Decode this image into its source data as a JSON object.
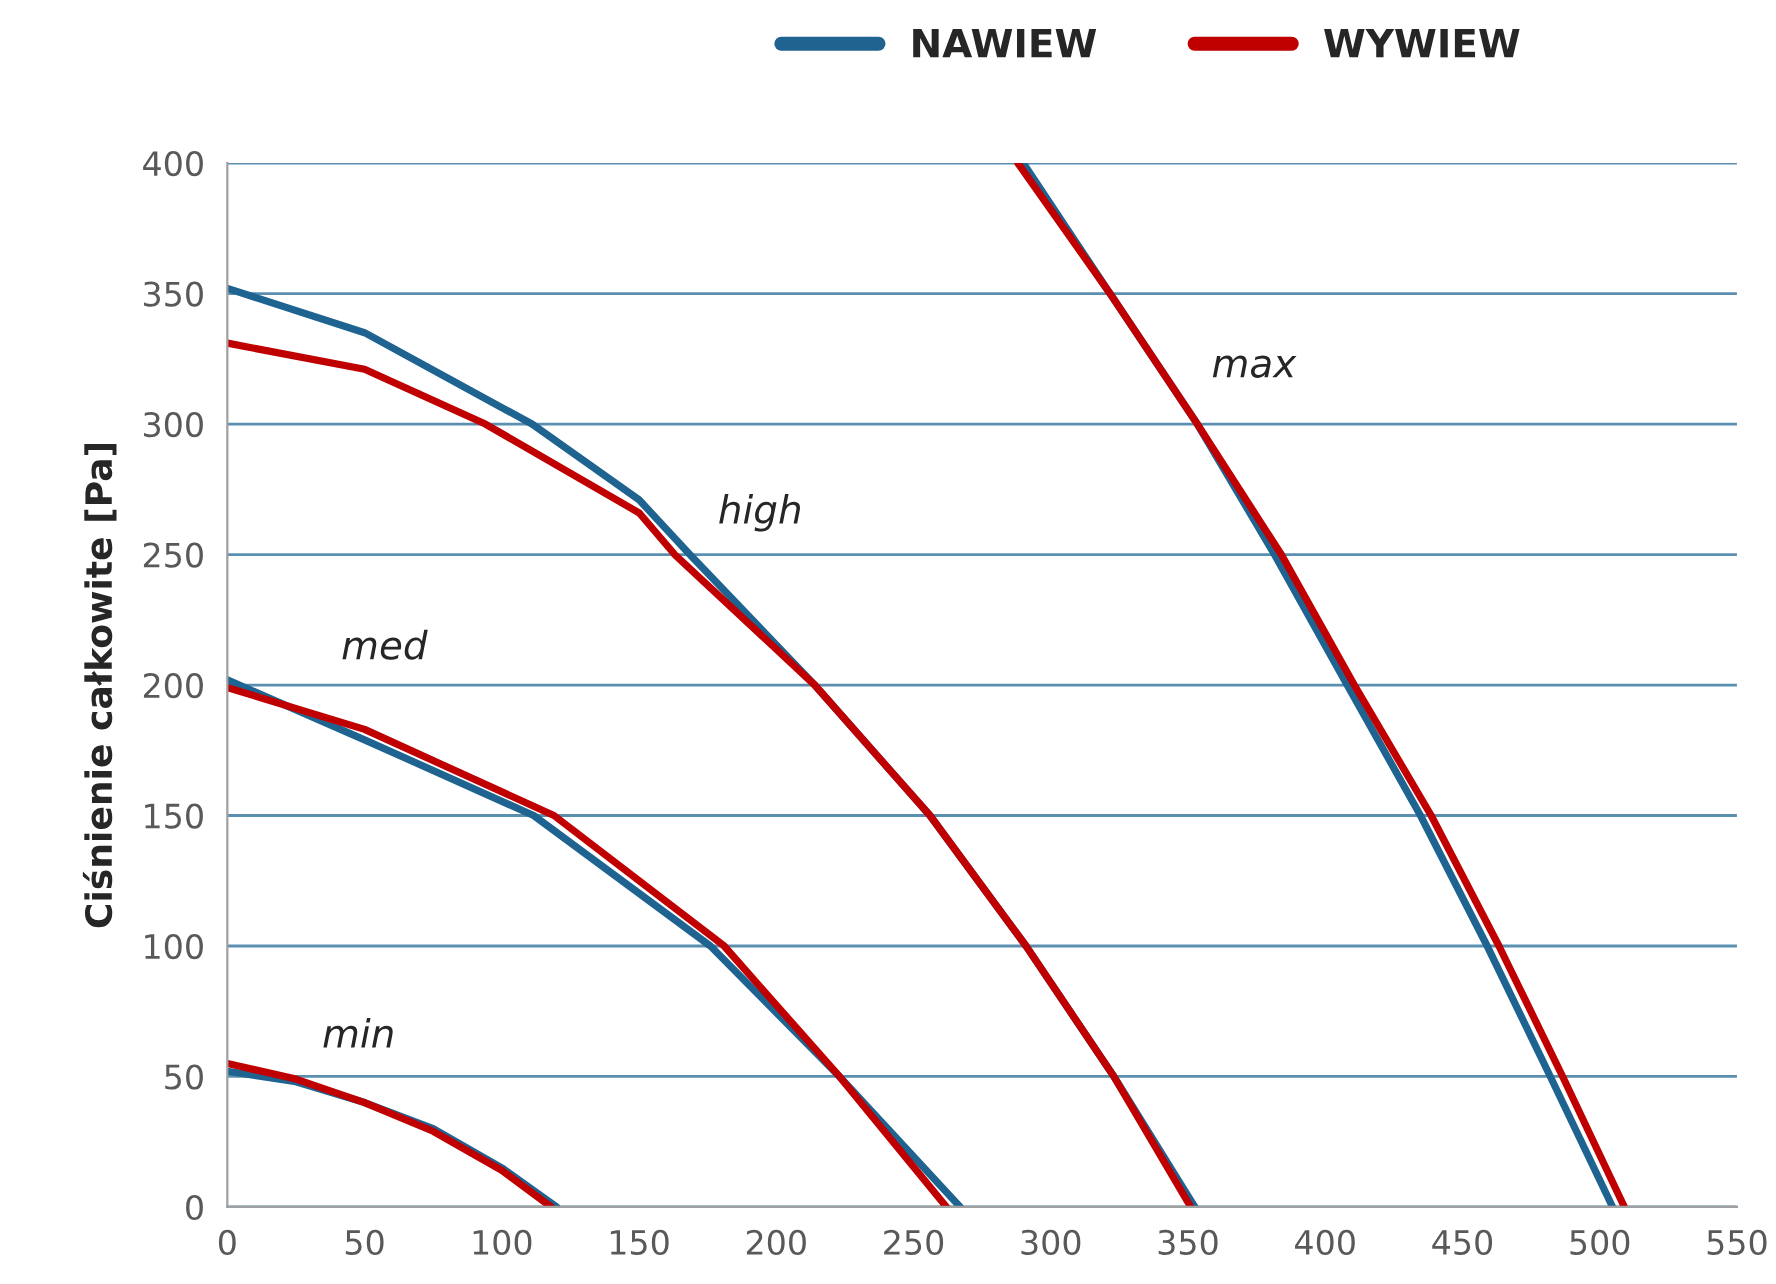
{
  "chart_data": {
    "type": "line",
    "ylabel": "Ciśnienie całkowite [Pa]",
    "xlim": [
      0,
      550
    ],
    "ylim": [
      0,
      400
    ],
    "xticks": [
      0,
      50,
      100,
      150,
      200,
      250,
      300,
      350,
      400,
      450,
      500,
      550
    ],
    "yticks": [
      0,
      50,
      100,
      150,
      200,
      250,
      300,
      350,
      400
    ],
    "grid": "y",
    "legend": "top right",
    "marker": "none",
    "line_style": "solid",
    "series": [
      {
        "name": "NAWIEW",
        "color": "#1f6391",
        "x": [
          0,
          25,
          50,
          75,
          100,
          120
        ],
        "values": [
          52,
          48,
          40,
          30,
          15,
          0
        ]
      },
      {
        "name": "WYWIEW",
        "color": "#c00000",
        "x": [
          0,
          25,
          50,
          75,
          100,
          118
        ],
        "values": [
          55,
          49,
          40,
          29,
          14,
          0
        ]
      },
      {
        "color": "#1f6391",
        "x": [
          0,
          50,
          111.6,
          176,
          223,
          267
        ],
        "values": [
          202,
          179,
          150,
          100,
          50,
          0
        ]
      },
      {
        "color": "#c00000",
        "x": [
          0,
          50,
          119,
          181,
          223,
          262
        ],
        "values": [
          199,
          183,
          150,
          100,
          50,
          0
        ]
      },
      {
        "color": "#1f6391",
        "x": [
          0,
          50,
          111,
          150,
          168.5,
          214,
          256,
          291,
          323,
          352.5
        ],
        "values": [
          352,
          335,
          300,
          271,
          250,
          200,
          150,
          100,
          50,
          0
        ]
      },
      {
        "color": "#c00000",
        "x": [
          0,
          50,
          94,
          150,
          163,
          214,
          256,
          291,
          323,
          351
        ],
        "values": [
          331,
          321,
          300,
          266,
          250,
          200,
          150,
          100,
          50,
          0
        ]
      },
      {
        "color": "#1f6391",
        "x": [
          290,
          321.6,
          353.4,
          381.5,
          408,
          434.7,
          459,
          482,
          504.7
        ],
        "values": [
          400,
          350,
          300,
          250,
          200,
          150,
          100,
          50,
          0
        ]
      },
      {
        "color": "#c00000",
        "x": [
          288,
          321.6,
          353.4,
          384,
          410.6,
          438.6,
          463.3,
          486.5,
          509
        ],
        "values": [
          400,
          350,
          300,
          250,
          200,
          150,
          100,
          50,
          0
        ]
      }
    ],
    "annotations": [
      "min",
      "med",
      "high",
      "max"
    ]
  }
}
